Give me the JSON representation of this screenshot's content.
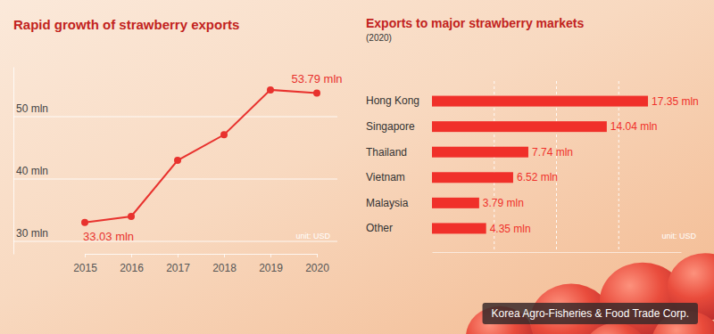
{
  "chart_data": [
    {
      "type": "line",
      "title": "Rapid growth of strawberry exports",
      "categories": [
        "2015",
        "2016",
        "2017",
        "2018",
        "2019",
        "2020"
      ],
      "values": [
        33.03,
        34.0,
        43.0,
        47.1,
        54.3,
        53.79
      ],
      "value_labels": [
        "33.03 mln",
        null,
        null,
        null,
        null,
        "53.79 mln"
      ],
      "data_labels": true,
      "color": "#e8322e",
      "marker": "circle",
      "ylim": [
        28,
        58
      ],
      "yticks": [
        {
          "value": 30,
          "label": "30 mln"
        },
        {
          "value": 40,
          "label": "40 mln"
        },
        {
          "value": 50,
          "label": "50 mln"
        }
      ],
      "grid": true,
      "annotation": "unit: USD"
    },
    {
      "type": "bar",
      "orientation": "horizontal",
      "title": "Exports to major strawberry markets",
      "subtitle": "(2020)",
      "categories": [
        "Hong Kong",
        "Singapore",
        "Thailand",
        "Vietnam",
        "Malaysia",
        "Other"
      ],
      "values": [
        17.35,
        14.04,
        7.74,
        6.52,
        3.79,
        4.35
      ],
      "value_labels": [
        "17.35 mln",
        "14.04 mln",
        "7.74 mln",
        "6.52 mln",
        "3.79 mln",
        "4.35 mln"
      ],
      "data_labels": true,
      "color": "#f0302a",
      "xlim": [
        0,
        20
      ],
      "xticks": [
        5,
        10,
        15
      ],
      "grid": true,
      "tick_labels": "y",
      "annotation": "unit: USD"
    }
  ],
  "source": "Korea Agro-Fisheries & Food Trade Corp."
}
